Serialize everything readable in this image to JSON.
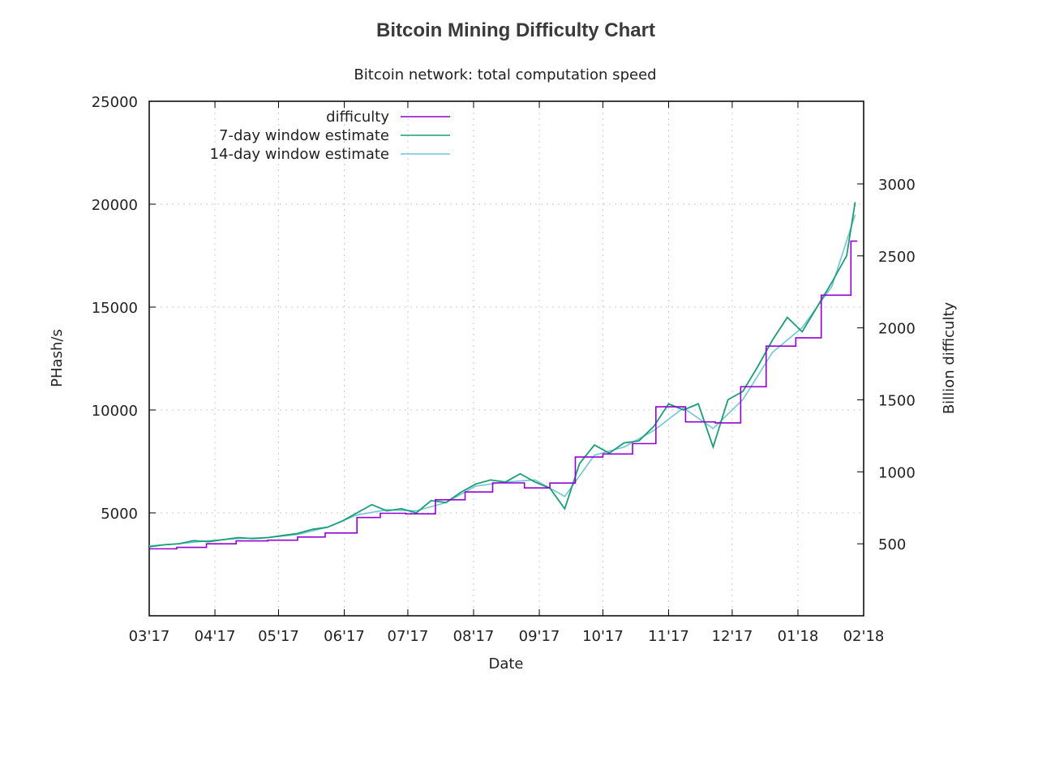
{
  "page": {
    "title": "Bitcoin Mining Difficulty Chart"
  },
  "chart_data": {
    "type": "line",
    "subtitle": "Bitcoin network: total computation speed",
    "xlabel": "Date",
    "ylabel": "PHash/s",
    "y2label": "Billion difficulty",
    "x_ticks": [
      "03'17",
      "04'17",
      "05'17",
      "06'17",
      "07'17",
      "08'17",
      "09'17",
      "10'17",
      "11'17",
      "12'17",
      "01'18",
      "02'18"
    ],
    "y_ticks": [
      "5000",
      "10000",
      "15000",
      "20000",
      "25000"
    ],
    "y2_ticks": [
      "500",
      "1000",
      "1500",
      "2000",
      "2500",
      "3000"
    ],
    "ylim": [
      0,
      25000
    ],
    "y2lim": [
      0,
      3574
    ],
    "xlim": [
      "2017-03-01",
      "2018-02-01"
    ],
    "grid": true,
    "legend_position": "top-left",
    "colors": {
      "difficulty": "#9400d3",
      "estimate7": "#1a9e76",
      "estimate14": "#6ec6d8"
    },
    "series": [
      {
        "name": "difficulty",
        "step": true,
        "axis": "y2",
        "x": [
          "2017-03-01",
          "2017-03-14",
          "2017-03-28",
          "2017-04-11",
          "2017-04-26",
          "2017-05-10",
          "2017-05-23",
          "2017-06-07",
          "2017-06-18",
          "2017-06-30",
          "2017-07-14",
          "2017-07-28",
          "2017-08-10",
          "2017-08-25",
          "2017-09-06",
          "2017-09-18",
          "2017-10-01",
          "2017-10-15",
          "2017-10-26",
          "2017-11-09",
          "2017-11-23",
          "2017-12-05",
          "2017-12-17",
          "2017-12-31",
          "2018-01-12",
          "2018-01-26"
        ],
        "values": [
          465,
          475,
          500,
          520,
          525,
          547,
          575,
          683,
          712,
          708,
          806,
          860,
          923,
          888,
          922,
          1103,
          1124,
          1196,
          1452,
          1347,
          1340,
          1591,
          1873,
          1931,
          2227,
          2603
        ]
      },
      {
        "name": "7-day window estimate",
        "x": [
          "2017-03-01",
          "2017-03-08",
          "2017-03-15",
          "2017-03-22",
          "2017-03-29",
          "2017-04-05",
          "2017-04-12",
          "2017-04-19",
          "2017-04-26",
          "2017-05-03",
          "2017-05-10",
          "2017-05-17",
          "2017-05-24",
          "2017-05-31",
          "2017-06-07",
          "2017-06-14",
          "2017-06-21",
          "2017-06-28",
          "2017-07-05",
          "2017-07-12",
          "2017-07-19",
          "2017-07-26",
          "2017-08-02",
          "2017-08-09",
          "2017-08-16",
          "2017-08-23",
          "2017-08-30",
          "2017-09-06",
          "2017-09-13",
          "2017-09-20",
          "2017-09-27",
          "2017-10-04",
          "2017-10-11",
          "2017-10-18",
          "2017-10-25",
          "2017-11-01",
          "2017-11-08",
          "2017-11-15",
          "2017-11-22",
          "2017-11-29",
          "2017-12-06",
          "2017-12-13",
          "2017-12-20",
          "2017-12-27",
          "2018-01-03",
          "2018-01-10",
          "2018-01-17",
          "2018-01-24",
          "2018-01-28"
        ],
        "values": [
          3350,
          3450,
          3500,
          3650,
          3600,
          3700,
          3800,
          3750,
          3800,
          3900,
          4000,
          4200,
          4300,
          4600,
          5000,
          5400,
          5100,
          5200,
          5000,
          5600,
          5500,
          6000,
          6400,
          6600,
          6500,
          6900,
          6500,
          6200,
          5200,
          7400,
          8300,
          7900,
          8400,
          8500,
          9200,
          10300,
          10000,
          10300,
          8200,
          10500,
          10900,
          12100,
          13400,
          14500,
          13800,
          15000,
          16200,
          17500,
          20100
        ]
      },
      {
        "name": "14-day window estimate",
        "x": [
          "2017-03-01",
          "2017-03-15",
          "2017-03-29",
          "2017-04-12",
          "2017-04-26",
          "2017-05-10",
          "2017-05-24",
          "2017-06-07",
          "2017-06-21",
          "2017-07-05",
          "2017-07-19",
          "2017-08-02",
          "2017-08-16",
          "2017-08-30",
          "2017-09-13",
          "2017-09-27",
          "2017-10-11",
          "2017-10-25",
          "2017-11-08",
          "2017-11-22",
          "2017-12-06",
          "2017-12-20",
          "2018-01-03",
          "2018-01-17",
          "2018-01-28"
        ],
        "values": [
          3400,
          3500,
          3650,
          3750,
          3800,
          3950,
          4300,
          4900,
          5150,
          5100,
          5500,
          6300,
          6500,
          6600,
          5800,
          7800,
          8200,
          9000,
          10100,
          9100,
          10500,
          12800,
          14000,
          16000,
          19500
        ]
      }
    ]
  }
}
